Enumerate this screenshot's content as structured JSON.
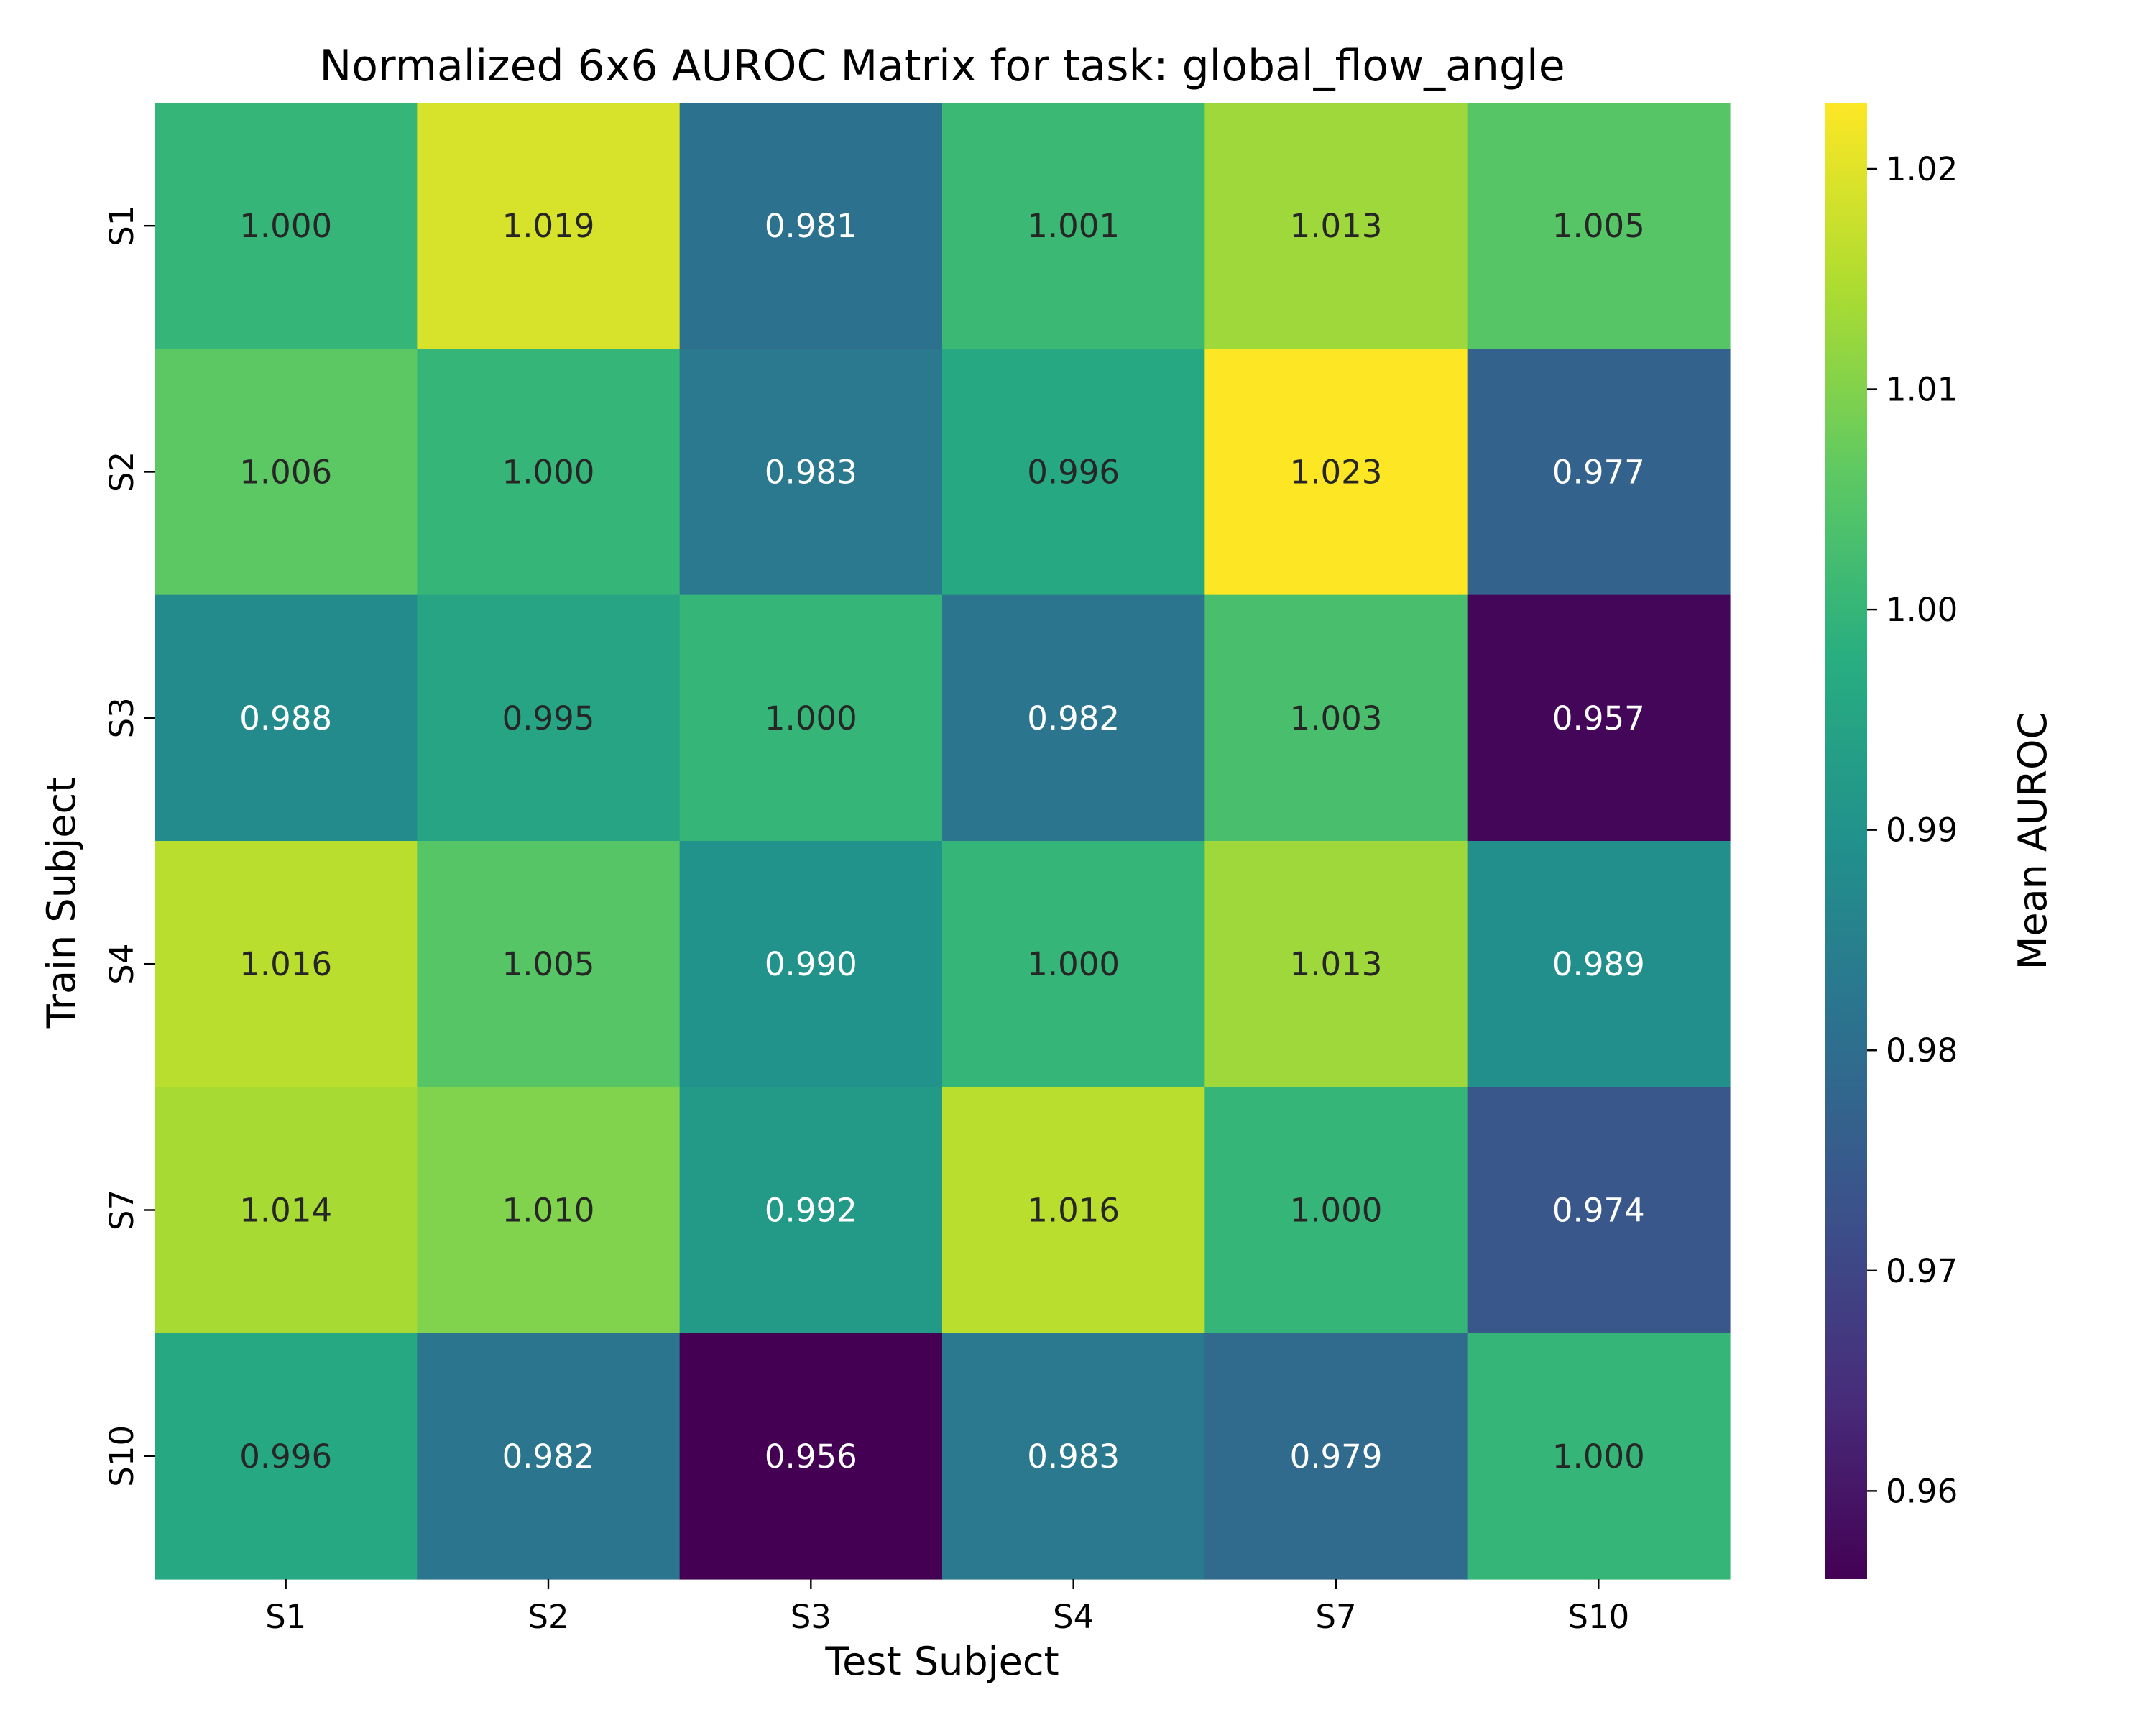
{
  "chart_data": {
    "type": "heatmap",
    "title": "Normalized 6x6 AUROC Matrix for task: global_flow_angle",
    "xlabel": "Test Subject",
    "ylabel": "Train Subject",
    "x_categories": [
      "S1",
      "S2",
      "S3",
      "S4",
      "S7",
      "S10"
    ],
    "y_categories": [
      "S1",
      "S2",
      "S3",
      "S4",
      "S7",
      "S10"
    ],
    "values": [
      [
        1.0,
        1.019,
        0.981,
        1.001,
        1.013,
        1.005
      ],
      [
        1.006,
        1.0,
        0.983,
        0.996,
        1.023,
        0.977
      ],
      [
        0.988,
        0.995,
        1.0,
        0.982,
        1.003,
        0.957
      ],
      [
        1.016,
        1.005,
        0.99,
        1.0,
        1.013,
        0.989
      ],
      [
        1.014,
        1.01,
        0.992,
        1.016,
        1.0,
        0.974
      ],
      [
        0.996,
        0.982,
        0.956,
        0.983,
        0.979,
        1.0
      ]
    ],
    "value_format": "0.000",
    "colormap": "viridis",
    "colorbar": {
      "label": "Mean AUROC",
      "range": [
        0.956,
        1.023
      ],
      "ticks": [
        0.96,
        0.97,
        0.98,
        0.99,
        1.0,
        1.01,
        1.02
      ],
      "tick_labels": [
        "0.96",
        "0.97",
        "0.98",
        "0.99",
        "1.00",
        "1.01",
        "1.02"
      ],
      "position": "right"
    },
    "grid": false
  }
}
